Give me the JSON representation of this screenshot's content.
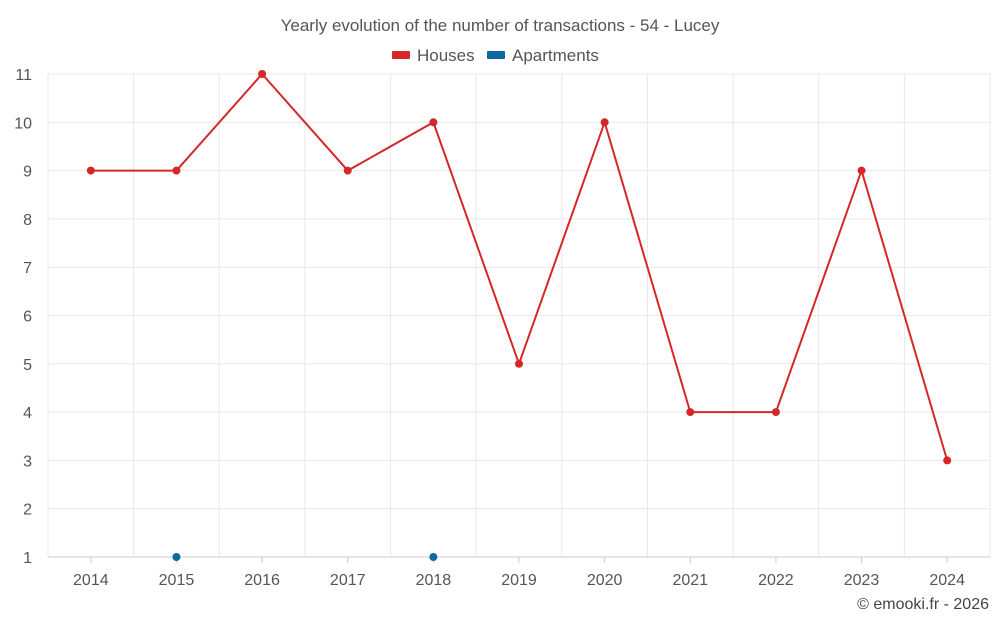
{
  "chart_data": {
    "type": "line",
    "title": "Yearly evolution of the number of transactions - 54 - Lucey",
    "xlabel": "",
    "ylabel": "",
    "categories": [
      "2014",
      "2015",
      "2016",
      "2017",
      "2018",
      "2019",
      "2020",
      "2021",
      "2022",
      "2023",
      "2024"
    ],
    "y_ticks": [
      "1",
      "2",
      "3",
      "4",
      "5",
      "6",
      "7",
      "8",
      "9",
      "10",
      "11"
    ],
    "ylim": [
      1,
      11
    ],
    "grid": true,
    "legend_position": "top-center",
    "series": [
      {
        "name": "Houses",
        "color": "#d62728",
        "values": [
          9,
          9,
          11,
          9,
          10,
          5,
          10,
          4,
          4,
          9,
          3
        ]
      },
      {
        "name": "Apartments",
        "color": "#0b6aa2",
        "values": [
          null,
          1,
          null,
          null,
          1,
          null,
          null,
          null,
          null,
          null,
          null
        ]
      }
    ]
  },
  "credit": "© emooki.fr - 2026"
}
